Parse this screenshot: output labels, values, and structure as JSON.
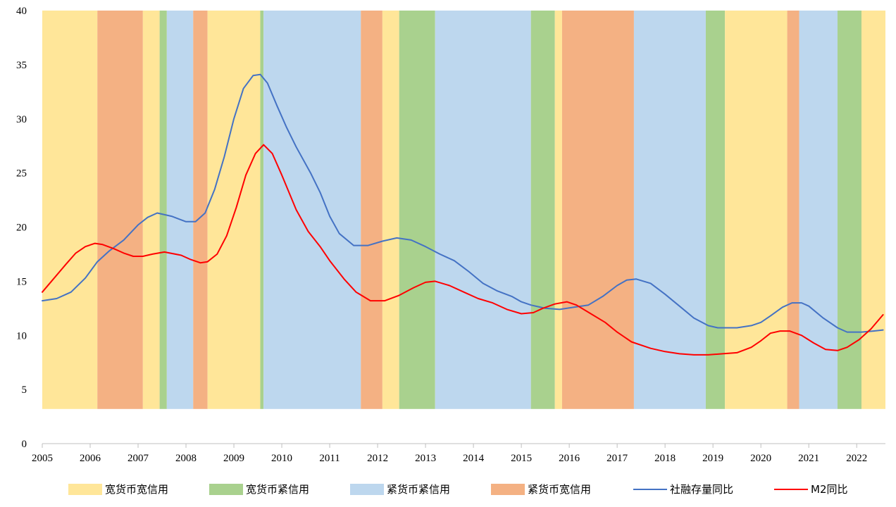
{
  "chart_data": {
    "type": "line",
    "title": "",
    "xlabel": "",
    "ylabel": "",
    "xlim": [
      2005.0,
      2022.6
    ],
    "ylim": [
      0,
      40
    ],
    "y_ticks": [
      0,
      5,
      10,
      15,
      20,
      25,
      30,
      35,
      40
    ],
    "x_ticks": [
      2005,
      2006,
      2007,
      2008,
      2009,
      2010,
      2011,
      2012,
      2013,
      2014,
      2015,
      2016,
      2017,
      2018,
      2019,
      2020,
      2021,
      2022
    ],
    "regimes": [
      {
        "name": "宽货币宽信用",
        "color": "#FFE699"
      },
      {
        "name": "宽货币紧信用",
        "color": "#A9D18E"
      },
      {
        "name": "紧货币紧信用",
        "color": "#BDD7EE"
      },
      {
        "name": "紧货币宽信用",
        "color": "#F4B183"
      }
    ],
    "bands": [
      {
        "start": 2005.0,
        "end": 2006.15,
        "regime": 0
      },
      {
        "start": 2006.15,
        "end": 2007.1,
        "regime": 3
      },
      {
        "start": 2007.1,
        "end": 2007.45,
        "regime": 0
      },
      {
        "start": 2007.45,
        "end": 2007.6,
        "regime": 1
      },
      {
        "start": 2007.6,
        "end": 2008.15,
        "regime": 2
      },
      {
        "start": 2008.15,
        "end": 2008.45,
        "regime": 3
      },
      {
        "start": 2008.45,
        "end": 2009.55,
        "regime": 0
      },
      {
        "start": 2009.55,
        "end": 2009.62,
        "regime": 1
      },
      {
        "start": 2009.62,
        "end": 2011.65,
        "regime": 2
      },
      {
        "start": 2011.65,
        "end": 2012.1,
        "regime": 3
      },
      {
        "start": 2012.1,
        "end": 2012.45,
        "regime": 0
      },
      {
        "start": 2012.45,
        "end": 2013.2,
        "regime": 1
      },
      {
        "start": 2013.2,
        "end": 2015.2,
        "regime": 2
      },
      {
        "start": 2015.2,
        "end": 2015.7,
        "regime": 1
      },
      {
        "start": 2015.7,
        "end": 2015.85,
        "regime": 0
      },
      {
        "start": 2015.85,
        "end": 2017.35,
        "regime": 3
      },
      {
        "start": 2017.35,
        "end": 2018.85,
        "regime": 2
      },
      {
        "start": 2018.85,
        "end": 2019.25,
        "regime": 1
      },
      {
        "start": 2019.25,
        "end": 2020.55,
        "regime": 0
      },
      {
        "start": 2020.55,
        "end": 2020.8,
        "regime": 3
      },
      {
        "start": 2020.8,
        "end": 2021.6,
        "regime": 2
      },
      {
        "start": 2021.6,
        "end": 2022.1,
        "regime": 1
      },
      {
        "start": 2022.1,
        "end": 2022.6,
        "regime": 0
      }
    ],
    "band_ymin": 3.2,
    "series": [
      {
        "name": "社融存量同比",
        "color": "#4472C4",
        "points": [
          [
            2005.0,
            13.2
          ],
          [
            2005.3,
            13.4
          ],
          [
            2005.6,
            14.0
          ],
          [
            2005.9,
            15.3
          ],
          [
            2006.15,
            16.8
          ],
          [
            2006.4,
            17.8
          ],
          [
            2006.7,
            18.8
          ],
          [
            2007.0,
            20.2
          ],
          [
            2007.2,
            20.9
          ],
          [
            2007.4,
            21.3
          ],
          [
            2007.7,
            21.0
          ],
          [
            2008.0,
            20.5
          ],
          [
            2008.2,
            20.5
          ],
          [
            2008.4,
            21.3
          ],
          [
            2008.6,
            23.5
          ],
          [
            2008.8,
            26.5
          ],
          [
            2009.0,
            30.0
          ],
          [
            2009.2,
            32.8
          ],
          [
            2009.4,
            34.0
          ],
          [
            2009.55,
            34.1
          ],
          [
            2009.7,
            33.3
          ],
          [
            2009.9,
            31.2
          ],
          [
            2010.1,
            29.2
          ],
          [
            2010.3,
            27.4
          ],
          [
            2010.6,
            25.0
          ],
          [
            2010.8,
            23.2
          ],
          [
            2011.0,
            21.0
          ],
          [
            2011.2,
            19.4
          ],
          [
            2011.5,
            18.3
          ],
          [
            2011.8,
            18.3
          ],
          [
            2012.1,
            18.7
          ],
          [
            2012.4,
            19.0
          ],
          [
            2012.7,
            18.8
          ],
          [
            2013.0,
            18.2
          ],
          [
            2013.3,
            17.5
          ],
          [
            2013.6,
            16.9
          ],
          [
            2013.9,
            15.9
          ],
          [
            2014.2,
            14.8
          ],
          [
            2014.5,
            14.1
          ],
          [
            2014.8,
            13.6
          ],
          [
            2015.0,
            13.1
          ],
          [
            2015.2,
            12.8
          ],
          [
            2015.5,
            12.5
          ],
          [
            2015.8,
            12.4
          ],
          [
            2016.1,
            12.6
          ],
          [
            2016.4,
            12.8
          ],
          [
            2016.7,
            13.6
          ],
          [
            2017.0,
            14.6
          ],
          [
            2017.2,
            15.1
          ],
          [
            2017.4,
            15.2
          ],
          [
            2017.7,
            14.8
          ],
          [
            2018.0,
            13.8
          ],
          [
            2018.3,
            12.7
          ],
          [
            2018.6,
            11.6
          ],
          [
            2018.9,
            10.9
          ],
          [
            2019.1,
            10.7
          ],
          [
            2019.5,
            10.7
          ],
          [
            2019.8,
            10.9
          ],
          [
            2020.0,
            11.2
          ],
          [
            2020.2,
            11.8
          ],
          [
            2020.45,
            12.6
          ],
          [
            2020.65,
            13.0
          ],
          [
            2020.85,
            13.0
          ],
          [
            2021.0,
            12.7
          ],
          [
            2021.3,
            11.6
          ],
          [
            2021.6,
            10.7
          ],
          [
            2021.8,
            10.3
          ],
          [
            2022.1,
            10.3
          ],
          [
            2022.35,
            10.4
          ],
          [
            2022.55,
            10.5
          ]
        ]
      },
      {
        "name": "M2同比",
        "color": "#FF0000",
        "points": [
          [
            2005.0,
            14.0
          ],
          [
            2005.25,
            15.3
          ],
          [
            2005.5,
            16.6
          ],
          [
            2005.7,
            17.6
          ],
          [
            2005.9,
            18.2
          ],
          [
            2006.1,
            18.5
          ],
          [
            2006.25,
            18.4
          ],
          [
            2006.5,
            18.0
          ],
          [
            2006.7,
            17.6
          ],
          [
            2006.9,
            17.3
          ],
          [
            2007.1,
            17.3
          ],
          [
            2007.3,
            17.5
          ],
          [
            2007.55,
            17.7
          ],
          [
            2007.9,
            17.4
          ],
          [
            2008.1,
            17.0
          ],
          [
            2008.3,
            16.7
          ],
          [
            2008.45,
            16.8
          ],
          [
            2008.65,
            17.5
          ],
          [
            2008.85,
            19.2
          ],
          [
            2009.05,
            21.8
          ],
          [
            2009.25,
            24.8
          ],
          [
            2009.45,
            26.8
          ],
          [
            2009.62,
            27.6
          ],
          [
            2009.8,
            26.8
          ],
          [
            2010.0,
            24.8
          ],
          [
            2010.3,
            21.6
          ],
          [
            2010.55,
            19.6
          ],
          [
            2010.8,
            18.2
          ],
          [
            2011.0,
            16.9
          ],
          [
            2011.3,
            15.2
          ],
          [
            2011.55,
            14.0
          ],
          [
            2011.85,
            13.2
          ],
          [
            2012.15,
            13.2
          ],
          [
            2012.45,
            13.7
          ],
          [
            2012.75,
            14.4
          ],
          [
            2013.0,
            14.9
          ],
          [
            2013.2,
            15.0
          ],
          [
            2013.5,
            14.6
          ],
          [
            2013.8,
            14.0
          ],
          [
            2014.1,
            13.4
          ],
          [
            2014.4,
            13.0
          ],
          [
            2014.7,
            12.4
          ],
          [
            2015.0,
            12.0
          ],
          [
            2015.25,
            12.1
          ],
          [
            2015.45,
            12.5
          ],
          [
            2015.7,
            12.9
          ],
          [
            2015.95,
            13.1
          ],
          [
            2016.15,
            12.8
          ],
          [
            2016.45,
            12.0
          ],
          [
            2016.75,
            11.2
          ],
          [
            2017.0,
            10.3
          ],
          [
            2017.3,
            9.4
          ],
          [
            2017.7,
            8.8
          ],
          [
            2018.0,
            8.5
          ],
          [
            2018.3,
            8.3
          ],
          [
            2018.6,
            8.2
          ],
          [
            2018.9,
            8.2
          ],
          [
            2019.2,
            8.3
          ],
          [
            2019.5,
            8.4
          ],
          [
            2019.8,
            8.9
          ],
          [
            2020.0,
            9.5
          ],
          [
            2020.2,
            10.2
          ],
          [
            2020.4,
            10.4
          ],
          [
            2020.6,
            10.4
          ],
          [
            2020.85,
            10.0
          ],
          [
            2021.1,
            9.3
          ],
          [
            2021.35,
            8.7
          ],
          [
            2021.6,
            8.6
          ],
          [
            2021.8,
            8.9
          ],
          [
            2022.05,
            9.6
          ],
          [
            2022.3,
            10.6
          ],
          [
            2022.55,
            11.9
          ]
        ]
      }
    ],
    "legend_position": "bottom"
  }
}
